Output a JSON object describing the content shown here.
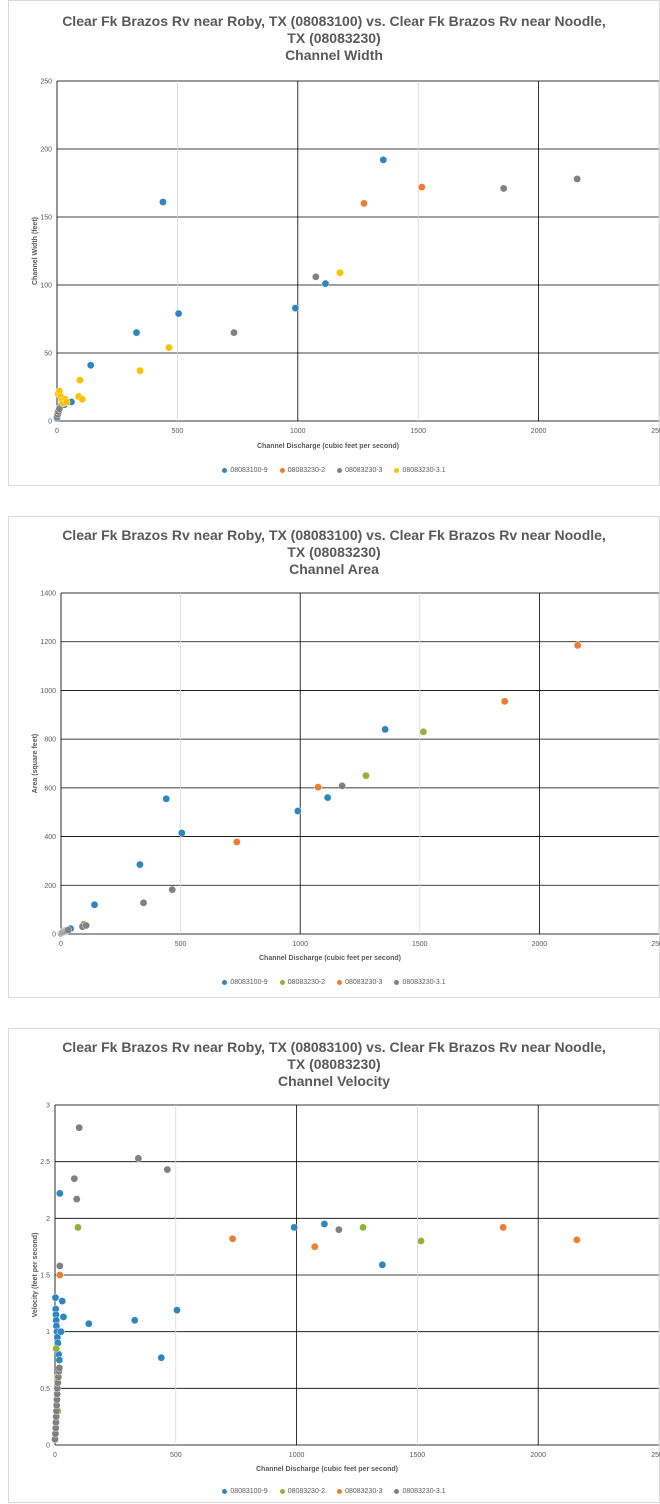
{
  "chart_data": [
    {
      "type": "scatter",
      "title_lines": [
        "Clear Fk Brazos Rv near Roby, TX (08083100) vs. Clear Fk Brazos Rv near Noodle,",
        "TX (08083230)",
        "Channel Width"
      ],
      "xlabel": "Channel Discharge (cubic feet per second)",
      "ylabel": "Channel Width (feet)",
      "xlim": [
        0,
        2500
      ],
      "ylim": [
        0,
        250
      ],
      "xticks": [
        0,
        500,
        1000,
        1500,
        2000,
        2500
      ],
      "yticks": [
        0,
        50,
        100,
        150,
        200,
        250
      ],
      "legend_position": "bottom",
      "series": [
        {
          "name": "08083100-9",
          "color": "#2e86c1",
          "points": [
            [
              0,
              2
            ],
            [
              2,
              4
            ],
            [
              5,
              6
            ],
            [
              8,
              8
            ],
            [
              12,
              10
            ],
            [
              20,
              12
            ],
            [
              30,
              12
            ],
            [
              45,
              14
            ],
            [
              60,
              14
            ],
            [
              140,
              41
            ],
            [
              330,
              65
            ],
            [
              440,
              161
            ],
            [
              505,
              79
            ],
            [
              990,
              83
            ],
            [
              1115,
              101
            ],
            [
              1355,
              192
            ]
          ]
        },
        {
          "name": "08083230-2",
          "color": "#ed7d31",
          "points": [
            [
              1275,
              160
            ],
            [
              1515,
              172
            ]
          ]
        },
        {
          "name": "08083230-3",
          "color": "#808080",
          "points": [
            [
              0,
              3
            ],
            [
              3,
              5
            ],
            [
              6,
              7
            ],
            [
              10,
              9
            ],
            [
              735,
              65
            ],
            [
              1075,
              106
            ],
            [
              1855,
              171
            ],
            [
              2160,
              178
            ]
          ]
        },
        {
          "name": "08083230-3.1",
          "color": "#ffc000",
          "points": [
            [
              5,
              20
            ],
            [
              10,
              22
            ],
            [
              15,
              18
            ],
            [
              20,
              15
            ],
            [
              25,
              13
            ],
            [
              35,
              16
            ],
            [
              40,
              14
            ],
            [
              90,
              18
            ],
            [
              95,
              30
            ],
            [
              105,
              16
            ],
            [
              345,
              37
            ],
            [
              465,
              54
            ],
            [
              1175,
              109
            ]
          ]
        }
      ]
    },
    {
      "type": "scatter",
      "title_lines": [
        "Clear Fk Brazos Rv near Roby, TX (08083100) vs. Clear Fk Brazos Rv near Noodle,",
        "TX (08083230)",
        "Channel Area"
      ],
      "xlabel": "Channel Discharge (cubic feet per second)",
      "ylabel": "Area (square feet)",
      "xlim": [
        0,
        2500
      ],
      "ylim": [
        0,
        1400
      ],
      "xticks": [
        0,
        500,
        1000,
        1500,
        2000,
        2500
      ],
      "yticks": [
        0,
        200,
        400,
        600,
        800,
        1000,
        1200,
        1400
      ],
      "legend_position": "bottom",
      "series": [
        {
          "name": "08083100-9",
          "color": "#2e86c1",
          "points": [
            [
              2,
              5
            ],
            [
              5,
              8
            ],
            [
              10,
              12
            ],
            [
              20,
              15
            ],
            [
              40,
              22
            ],
            [
              140,
              120
            ],
            [
              330,
              285
            ],
            [
              440,
              555
            ],
            [
              505,
              415
            ],
            [
              990,
              505
            ],
            [
              1115,
              560
            ],
            [
              1355,
              840
            ]
          ]
        },
        {
          "name": "08083230-2",
          "color": "#8db33a",
          "points": [
            [
              95,
              40
            ],
            [
              1275,
              650
            ],
            [
              1515,
              830
            ]
          ]
        },
        {
          "name": "08083230-3",
          "color": "#ed7d31",
          "points": [
            [
              735,
              378
            ],
            [
              1075,
              603
            ],
            [
              1855,
              955
            ],
            [
              2160,
              1185
            ]
          ]
        },
        {
          "name": "08083230-3.1",
          "color": "#808080",
          "points": [
            [
              0,
              2
            ],
            [
              3,
              4
            ],
            [
              6,
              6
            ],
            [
              10,
              8
            ],
            [
              15,
              10
            ],
            [
              20,
              12
            ],
            [
              25,
              14
            ],
            [
              30,
              16
            ],
            [
              90,
              30
            ],
            [
              105,
              35
            ],
            [
              345,
              128
            ],
            [
              465,
              182
            ],
            [
              1175,
              608
            ]
          ]
        }
      ]
    },
    {
      "type": "scatter",
      "title_lines": [
        "Clear Fk Brazos Rv near Roby, TX (08083100) vs. Clear Fk Brazos Rv near Noodle,",
        "TX (08083230)",
        "Channel Velocity"
      ],
      "xlabel": "Channel Discharge (cubic feet per second)",
      "ylabel": "Velocity (feet per second)",
      "xlim": [
        0,
        2500
      ],
      "ylim": [
        0,
        3
      ],
      "xticks": [
        0,
        500,
        1000,
        1500,
        2000,
        2500
      ],
      "yticks": [
        0,
        0.5,
        1,
        1.5,
        2,
        2.5,
        3
      ],
      "legend_position": "bottom",
      "series": [
        {
          "name": "08083100-9",
          "color": "#2e86c1",
          "points": [
            [
              2,
              1.3
            ],
            [
              3,
              1.2
            ],
            [
              4,
              1.15
            ],
            [
              5,
              1.1
            ],
            [
              6,
              1.05
            ],
            [
              8,
              1.0
            ],
            [
              10,
              0.95
            ],
            [
              12,
              0.9
            ],
            [
              15,
              0.8
            ],
            [
              18,
              0.75
            ],
            [
              20,
              2.22
            ],
            [
              25,
              1.0
            ],
            [
              30,
              1.27
            ],
            [
              35,
              1.13
            ],
            [
              140,
              1.07
            ],
            [
              330,
              1.1
            ],
            [
              440,
              0.77
            ],
            [
              505,
              1.19
            ],
            [
              990,
              1.92
            ],
            [
              1115,
              1.95
            ],
            [
              1355,
              1.59
            ]
          ]
        },
        {
          "name": "08083230-2",
          "color": "#8db33a",
          "points": [
            [
              5,
              0.85
            ],
            [
              10,
              0.6
            ],
            [
              12,
              0.3
            ],
            [
              95,
              1.92
            ],
            [
              1275,
              1.92
            ],
            [
              1515,
              1.8
            ]
          ]
        },
        {
          "name": "08083230-3",
          "color": "#ed7d31",
          "points": [
            [
              20,
              1.5
            ],
            [
              735,
              1.82
            ],
            [
              1075,
              1.75
            ],
            [
              1855,
              1.92
            ],
            [
              2160,
              1.81
            ]
          ]
        },
        {
          "name": "08083230-3.1",
          "color": "#808080",
          "points": [
            [
              0,
              0.05
            ],
            [
              2,
              0.1
            ],
            [
              3,
              0.15
            ],
            [
              4,
              0.2
            ],
            [
              5,
              0.25
            ],
            [
              6,
              0.3
            ],
            [
              7,
              0.35
            ],
            [
              8,
              0.4
            ],
            [
              9,
              0.45
            ],
            [
              10,
              0.5
            ],
            [
              12,
              0.55
            ],
            [
              14,
              0.6
            ],
            [
              16,
              0.65
            ],
            [
              18,
              0.68
            ],
            [
              20,
              1.58
            ],
            [
              80,
              2.35
            ],
            [
              90,
              2.17
            ],
            [
              100,
              2.8
            ],
            [
              345,
              2.53
            ],
            [
              465,
              2.43
            ],
            [
              1175,
              1.9
            ]
          ]
        }
      ]
    }
  ]
}
